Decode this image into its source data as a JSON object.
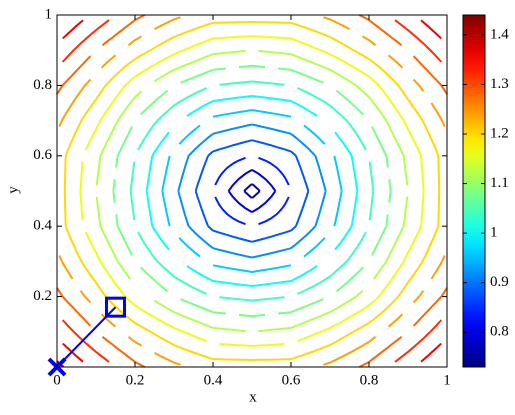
{
  "chart_data": {
    "type": "contour",
    "x": [
      0,
      0.1,
      0.2,
      0.3,
      0.4,
      0.5,
      0.6,
      0.7,
      0.8,
      0.9,
      1
    ],
    "y": [
      0,
      0.1,
      0.2,
      0.3,
      0.4,
      0.5,
      0.6,
      0.7,
      0.8,
      0.9,
      1
    ],
    "z": [
      [
        1.41,
        1.35,
        1.29,
        1.25,
        1.22,
        1.22,
        1.22,
        1.25,
        1.29,
        1.35,
        1.41
      ],
      [
        1.35,
        1.28,
        1.22,
        1.17,
        1.13,
        1.12,
        1.13,
        1.17,
        1.22,
        1.28,
        1.35
      ],
      [
        1.29,
        1.22,
        1.14,
        1.08,
        1.04,
        1.03,
        1.04,
        1.08,
        1.14,
        1.22,
        1.29
      ],
      [
        1.25,
        1.17,
        1.08,
        1.01,
        0.95,
        0.93,
        0.95,
        1.01,
        1.08,
        1.17,
        1.25
      ],
      [
        1.22,
        1.13,
        1.04,
        0.95,
        0.87,
        0.84,
        0.87,
        0.95,
        1.04,
        1.13,
        1.22
      ],
      [
        1.22,
        1.12,
        1.03,
        0.93,
        0.84,
        0.74,
        0.84,
        0.93,
        1.03,
        1.12,
        1.22
      ],
      [
        1.22,
        1.13,
        1.04,
        0.95,
        0.87,
        0.84,
        0.87,
        0.95,
        1.04,
        1.13,
        1.22
      ],
      [
        1.25,
        1.17,
        1.08,
        1.01,
        0.95,
        0.93,
        0.95,
        1.01,
        1.08,
        1.17,
        1.25
      ],
      [
        1.29,
        1.22,
        1.14,
        1.08,
        1.04,
        1.03,
        1.04,
        1.08,
        1.14,
        1.22,
        1.29
      ],
      [
        1.35,
        1.28,
        1.22,
        1.17,
        1.13,
        1.12,
        1.13,
        1.17,
        1.22,
        1.28,
        1.35
      ],
      [
        1.41,
        1.35,
        1.29,
        1.25,
        1.22,
        1.22,
        1.22,
        1.25,
        1.29,
        1.35,
        1.41
      ]
    ],
    "levels": [
      0.76,
      0.8,
      0.84,
      0.88,
      0.92,
      0.96,
      1.0,
      1.04,
      1.08,
      1.12,
      1.16,
      1.2,
      1.24,
      1.28,
      1.32,
      1.36,
      1.4
    ],
    "colormap": "jet",
    "clim": [
      0.73,
      1.44
    ],
    "cticks": [
      0.8,
      0.9,
      1,
      1.1,
      1.2,
      1.3,
      1.4
    ],
    "xlim": [
      0,
      1
    ],
    "ylim": [
      0,
      1
    ],
    "xticks": [
      0,
      0.2,
      0.4,
      0.6,
      0.8,
      1
    ],
    "yticks": [
      0.2,
      0.4,
      0.6,
      0.8,
      1
    ],
    "xlabel": "x",
    "ylabel": "y",
    "path": {
      "x": [
        0,
        0.15
      ],
      "y": [
        0,
        0.17
      ],
      "color": "#0000ff"
    }
  }
}
